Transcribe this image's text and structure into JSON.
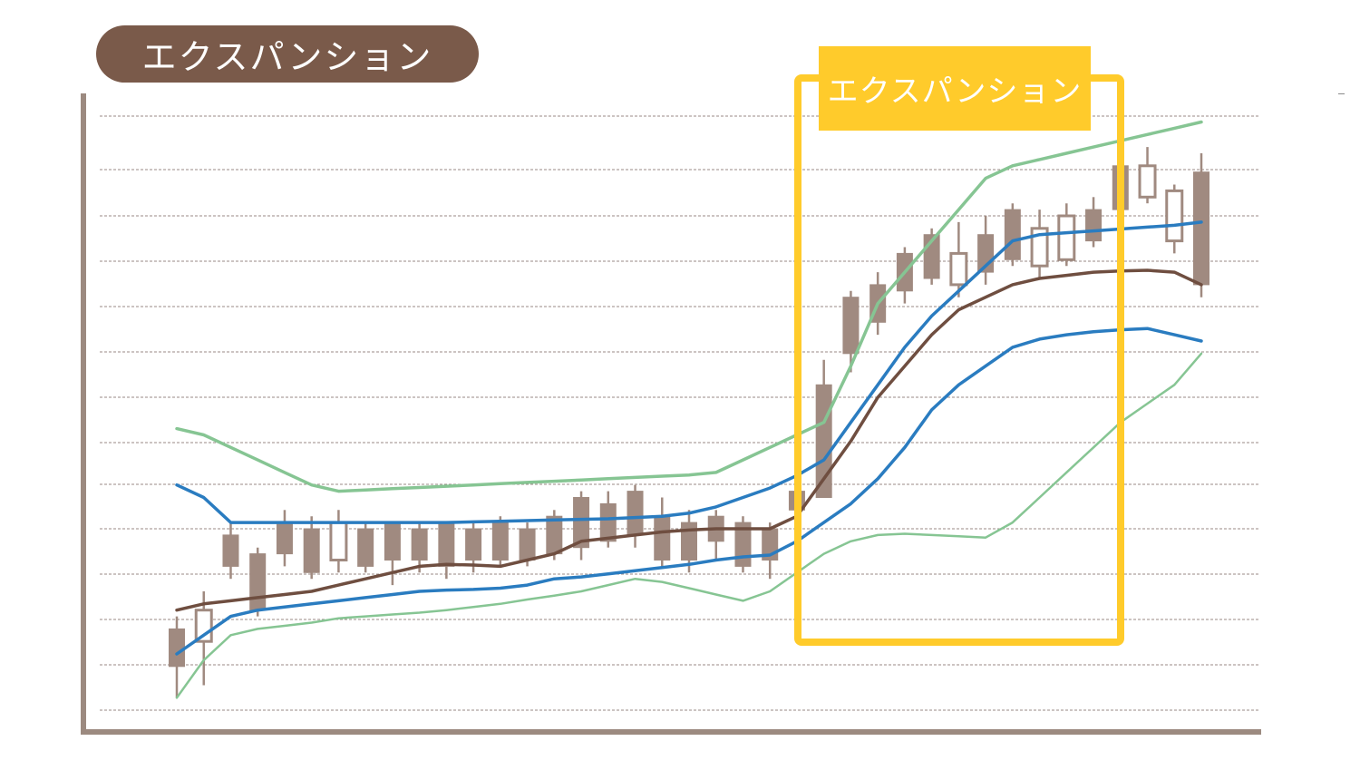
{
  "title": "エクスパンション",
  "callout": {
    "label": "エクスパンション"
  },
  "colors": {
    "pill": "#7a5a4a",
    "highlight": "#ffcb2b",
    "axis": "#9c8a80",
    "grid": "#9a8a86",
    "candle": "#a08a80",
    "middle_band": "#6f4e40",
    "sigma1": "#2a7cc0",
    "sigma2": "#86c593"
  },
  "chart_data": {
    "type": "candlestick",
    "title": "エクスパンション",
    "xlabel": "",
    "ylabel": "",
    "grid": true,
    "ylim": [
      0,
      100
    ],
    "highlight_range": [
      24,
      35
    ],
    "candles": [
      {
        "o": 8,
        "c": 14,
        "h": 16,
        "l": 3
      },
      {
        "o": 17,
        "c": 12,
        "h": 20,
        "l": 5
      },
      {
        "o": 24,
        "c": 29,
        "h": 31,
        "l": 22
      },
      {
        "o": 17,
        "c": 26,
        "h": 27,
        "l": 16
      },
      {
        "o": 26,
        "c": 31,
        "h": 33,
        "l": 24
      },
      {
        "o": 23,
        "c": 30,
        "h": 32,
        "l": 22
      },
      {
        "o": 31,
        "c": 25,
        "h": 33,
        "l": 23
      },
      {
        "o": 24,
        "c": 30,
        "h": 31,
        "l": 23
      },
      {
        "o": 25,
        "c": 31,
        "h": 31,
        "l": 21
      },
      {
        "o": 25,
        "c": 30,
        "h": 31,
        "l": 23
      },
      {
        "o": 24,
        "c": 31,
        "h": 31,
        "l": 22
      },
      {
        "o": 25,
        "c": 30,
        "h": 31,
        "l": 23
      },
      {
        "o": 25,
        "c": 31,
        "h": 32,
        "l": 24
      },
      {
        "o": 25,
        "c": 30,
        "h": 31,
        "l": 24
      },
      {
        "o": 26,
        "c": 32,
        "h": 33,
        "l": 25
      },
      {
        "o": 27,
        "c": 35,
        "h": 36,
        "l": 25
      },
      {
        "o": 28,
        "c": 34,
        "h": 36,
        "l": 27
      },
      {
        "o": 29,
        "c": 36,
        "h": 37,
        "l": 27
      },
      {
        "o": 25,
        "c": 32,
        "h": 35,
        "l": 24
      },
      {
        "o": 25,
        "c": 31,
        "h": 33,
        "l": 23
      },
      {
        "o": 28,
        "c": 32,
        "h": 33,
        "l": 25
      },
      {
        "o": 24,
        "c": 31,
        "h": 32,
        "l": 23
      },
      {
        "o": 25,
        "c": 30,
        "h": 31,
        "l": 22
      },
      {
        "o": 33,
        "c": 36,
        "h": 37,
        "l": 30
      },
      {
        "o": 35,
        "c": 53,
        "h": 57,
        "l": 35
      },
      {
        "o": 58,
        "c": 67,
        "h": 68,
        "l": 55
      },
      {
        "o": 63,
        "c": 69,
        "h": 71,
        "l": 61
      },
      {
        "o": 68,
        "c": 74,
        "h": 75,
        "l": 66
      },
      {
        "o": 70,
        "c": 77,
        "h": 78,
        "l": 69
      },
      {
        "o": 74,
        "c": 69,
        "h": 79,
        "l": 67
      },
      {
        "o": 71,
        "c": 77,
        "h": 80,
        "l": 69
      },
      {
        "o": 73,
        "c": 81,
        "h": 82,
        "l": 72
      },
      {
        "o": 78,
        "c": 72,
        "h": 81,
        "l": 70
      },
      {
        "o": 80,
        "c": 73,
        "h": 82,
        "l": 72
      },
      {
        "o": 76,
        "c": 81,
        "h": 83,
        "l": 75
      },
      {
        "o": 81,
        "c": 88,
        "h": 90,
        "l": 80
      },
      {
        "o": 88,
        "c": 83,
        "h": 91,
        "l": 82
      },
      {
        "o": 84,
        "c": 76,
        "h": 85,
        "l": 74
      },
      {
        "o": 69,
        "c": 87,
        "h": 90,
        "l": 67
      }
    ],
    "series": [
      {
        "key": "upper2",
        "color": "#86c593",
        "width": 3.5,
        "values": [
          46,
          45,
          43,
          41,
          39,
          37,
          36,
          36.2,
          36.4,
          36.6,
          36.8,
          37,
          37.2,
          37.4,
          37.6,
          37.8,
          38,
          38.2,
          38.4,
          38.6,
          39,
          41,
          43,
          45,
          47,
          56,
          66,
          71,
          76,
          81,
          86,
          88,
          89,
          90,
          91,
          92,
          93,
          94,
          95
        ]
      },
      {
        "key": "upper1",
        "color": "#2a7cc0",
        "width": 3.5,
        "values": [
          37,
          35,
          31,
          31,
          31,
          31,
          31,
          31,
          31,
          31,
          31,
          31.1,
          31.2,
          31.3,
          31.4,
          31.5,
          31.6,
          31.8,
          32,
          32.5,
          33.5,
          35,
          36.5,
          38.5,
          41,
          47,
          53,
          59,
          64,
          68,
          72,
          76,
          77,
          77.3,
          77.6,
          77.9,
          78.2,
          78.5,
          79
        ]
      },
      {
        "key": "middle",
        "color": "#6f4e40",
        "width": 3.5,
        "values": [
          17,
          18,
          18.5,
          19,
          19.5,
          20,
          21,
          22,
          23,
          24,
          24.3,
          24.2,
          24,
          25,
          26,
          28,
          28.5,
          29,
          29.5,
          29.8,
          30,
          30,
          30,
          32,
          38,
          44,
          51,
          56,
          61,
          65,
          67,
          69,
          70,
          70.5,
          71,
          71.2,
          71.3,
          71,
          69
        ]
      },
      {
        "key": "lower1",
        "color": "#2a7cc0",
        "width": 3.5,
        "values": [
          10,
          13,
          16,
          17,
          17.5,
          18,
          18.5,
          19,
          19.5,
          20,
          20.2,
          20.3,
          20.5,
          21,
          22,
          22.3,
          22.8,
          23.3,
          23.8,
          24.3,
          25,
          25.5,
          25.8,
          28,
          31,
          34,
          38,
          43,
          49,
          53,
          56,
          59,
          60.3,
          61,
          61.5,
          61.8,
          62,
          61,
          60
        ]
      },
      {
        "key": "lower2",
        "color": "#86c593",
        "width": 2.5,
        "values": [
          3,
          9,
          13,
          14,
          14.5,
          15,
          15.7,
          16,
          16.3,
          16.6,
          17,
          17.5,
          18,
          18.7,
          19.3,
          20,
          21,
          22,
          21.5,
          20.5,
          19.5,
          18.5,
          20,
          23,
          26,
          28,
          29,
          29.2,
          29,
          28.8,
          28.6,
          31,
          35,
          39,
          43,
          47,
          50,
          53,
          58
        ]
      }
    ]
  }
}
